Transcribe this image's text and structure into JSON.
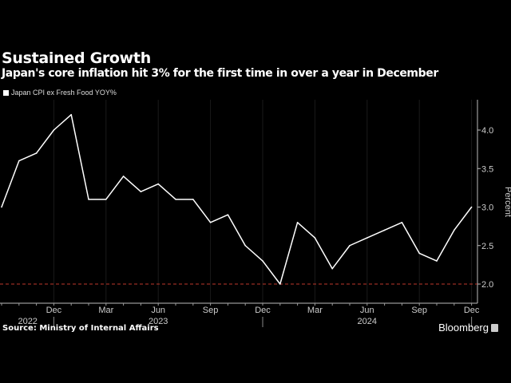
{
  "header": {
    "title": "Sustained Growth",
    "subtitle": "Japan's core inflation hit 3% for the first time in over a year in December"
  },
  "footer": {
    "source": "Source: Ministry of Internal Affairs",
    "brand": "Bloomberg"
  },
  "chart_data": {
    "type": "line",
    "title": "Sustained Growth",
    "subtitle": "Japan's core inflation hit 3% for the first time in over a year in December",
    "xlabel": "",
    "ylabel": "Percent",
    "ylim": [
      1.75,
      4.45
    ],
    "yticks": [
      "2.0",
      "2.5",
      "3.0",
      "3.5",
      "4.0"
    ],
    "reference_line": {
      "value": 2.0,
      "color": "#c0392b",
      "style": "dashed"
    },
    "x": [
      "2022-09",
      "2022-10",
      "2022-11",
      "2022-12",
      "2023-01",
      "2023-02",
      "2023-03",
      "2023-04",
      "2023-05",
      "2023-06",
      "2023-07",
      "2023-08",
      "2023-09",
      "2023-10",
      "2023-11",
      "2023-12",
      "2024-01",
      "2024-02",
      "2024-03",
      "2024-04",
      "2024-05",
      "2024-06",
      "2024-07",
      "2024-08",
      "2024-09",
      "2024-10",
      "2024-11",
      "2024-12"
    ],
    "xticks": [
      {
        "label": "Dec",
        "index": 3
      },
      {
        "label": "Mar",
        "index": 6
      },
      {
        "label": "Jun",
        "index": 9
      },
      {
        "label": "Sep",
        "index": 12
      },
      {
        "label": "Dec",
        "index": 15
      },
      {
        "label": "Mar",
        "index": 18
      },
      {
        "label": "Jun",
        "index": 21
      },
      {
        "label": "Sep",
        "index": 24
      },
      {
        "label": "Dec",
        "index": 27
      }
    ],
    "years": [
      {
        "label": "2022",
        "index": 1.5
      },
      {
        "label": "2023",
        "index": 9
      },
      {
        "label": "2024",
        "index": 21
      }
    ],
    "legend": {
      "placement": "top-left",
      "entries": [
        "Japan CPI ex Fresh Food YOY%"
      ]
    },
    "series": [
      {
        "name": "Japan CPI ex Fresh Food YOY%",
        "color": "#ffffff",
        "values": [
          3.0,
          3.6,
          3.7,
          4.0,
          4.2,
          3.1,
          3.1,
          3.4,
          3.2,
          3.3,
          3.1,
          3.1,
          2.8,
          2.9,
          2.5,
          2.3,
          2.0,
          2.8,
          2.6,
          2.2,
          2.5,
          2.6,
          2.7,
          2.8,
          2.4,
          2.3,
          2.7,
          3.0
        ]
      }
    ]
  }
}
